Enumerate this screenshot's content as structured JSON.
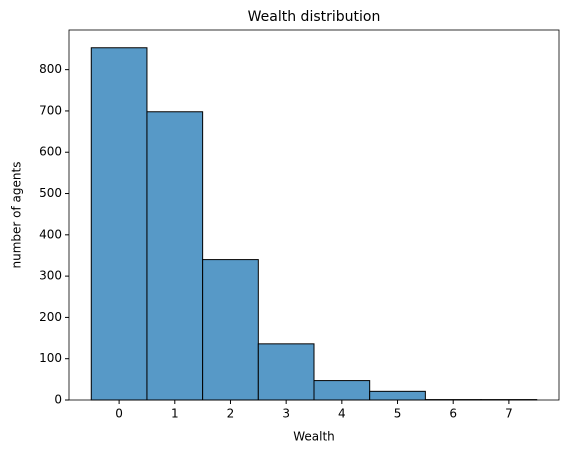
{
  "chart_data": {
    "type": "histogram",
    "title": "Wealth distribution",
    "x_label": "Wealth",
    "y_label": "number of agents",
    "bins": [
      -0.5,
      0.5,
      1.5,
      2.5,
      3.5,
      4.5,
      5.5,
      6.5,
      7.5
    ],
    "values": [
      853,
      698,
      340,
      136,
      47,
      21,
      1,
      1
    ],
    "color": "#5799c7",
    "edgecolor": "#000000",
    "xlim": [
      -0.9,
      7.9
    ],
    "ylim": [
      0,
      896
    ],
    "xticks": [
      0,
      1,
      2,
      3,
      4,
      5,
      6,
      7
    ],
    "yticks": [
      0,
      100,
      200,
      300,
      400,
      500,
      600,
      700,
      800
    ],
    "grid": false
  }
}
